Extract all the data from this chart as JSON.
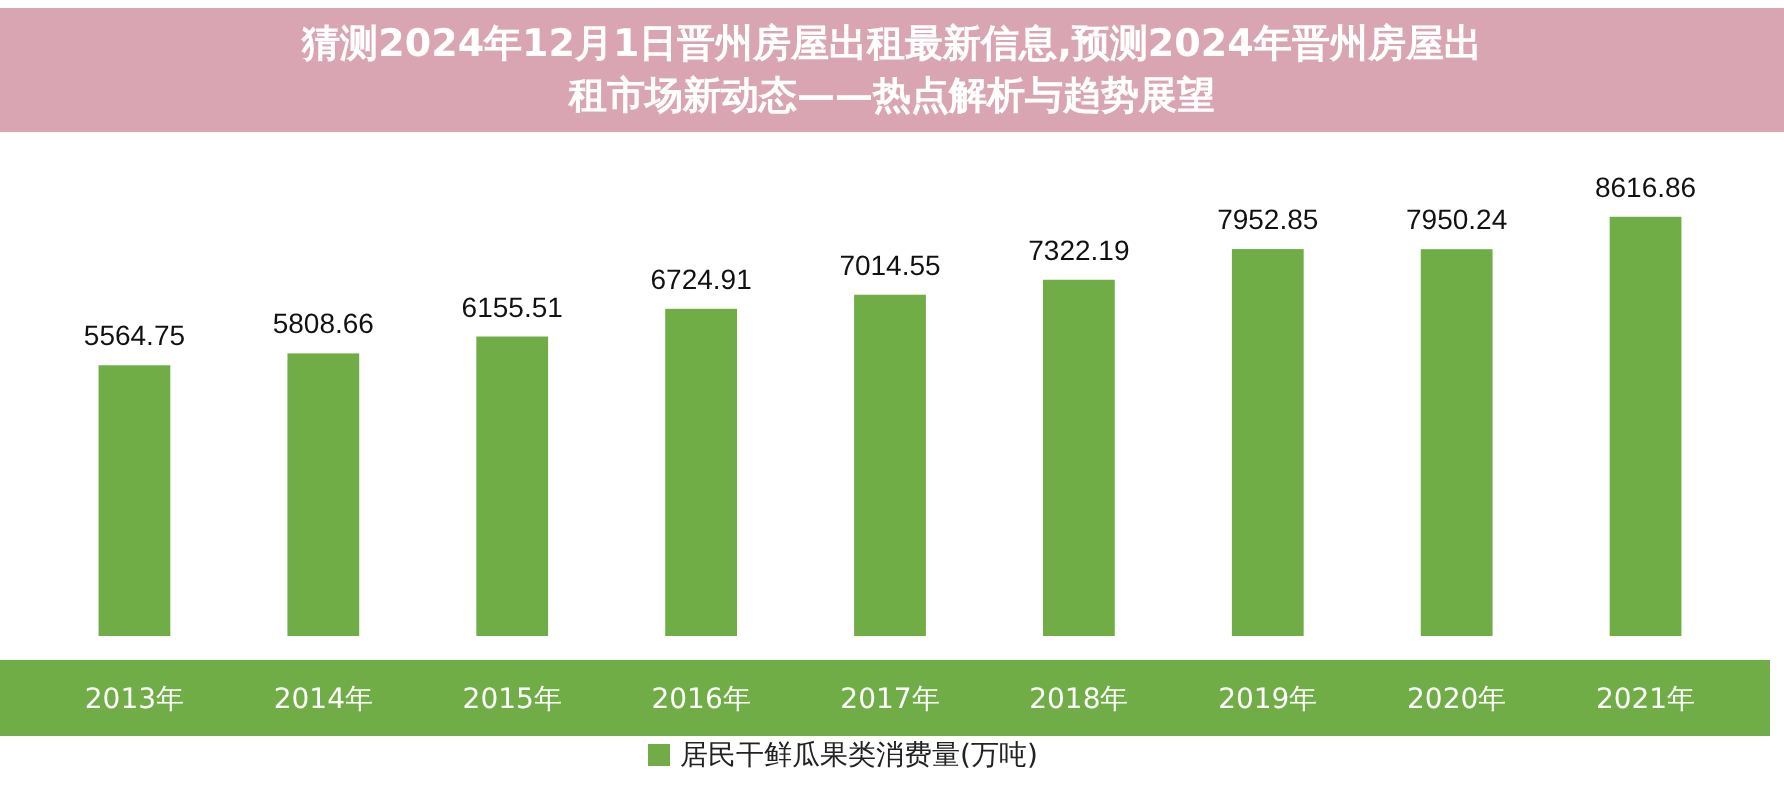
{
  "chart_data": {
    "type": "bar",
    "title": "猜测2024年12月1日晋州房屋出租最新信息,预测2024年晋州房屋出租市场新动态——热点解析与趋势展望",
    "categories": [
      "2013年",
      "2014年",
      "2015年",
      "2016年",
      "2017年",
      "2018年",
      "2019年",
      "2020年",
      "2021年"
    ],
    "series": [
      {
        "name": "居民干鲜瓜果类消费量(万吨)",
        "color": "#70ad47",
        "values": [
          5564.75,
          5808.66,
          6155.51,
          6724.91,
          7014.55,
          7322.19,
          7952.85,
          7950.24,
          8616.86
        ]
      }
    ],
    "data_labels": true,
    "legend": "bottom"
  }
}
